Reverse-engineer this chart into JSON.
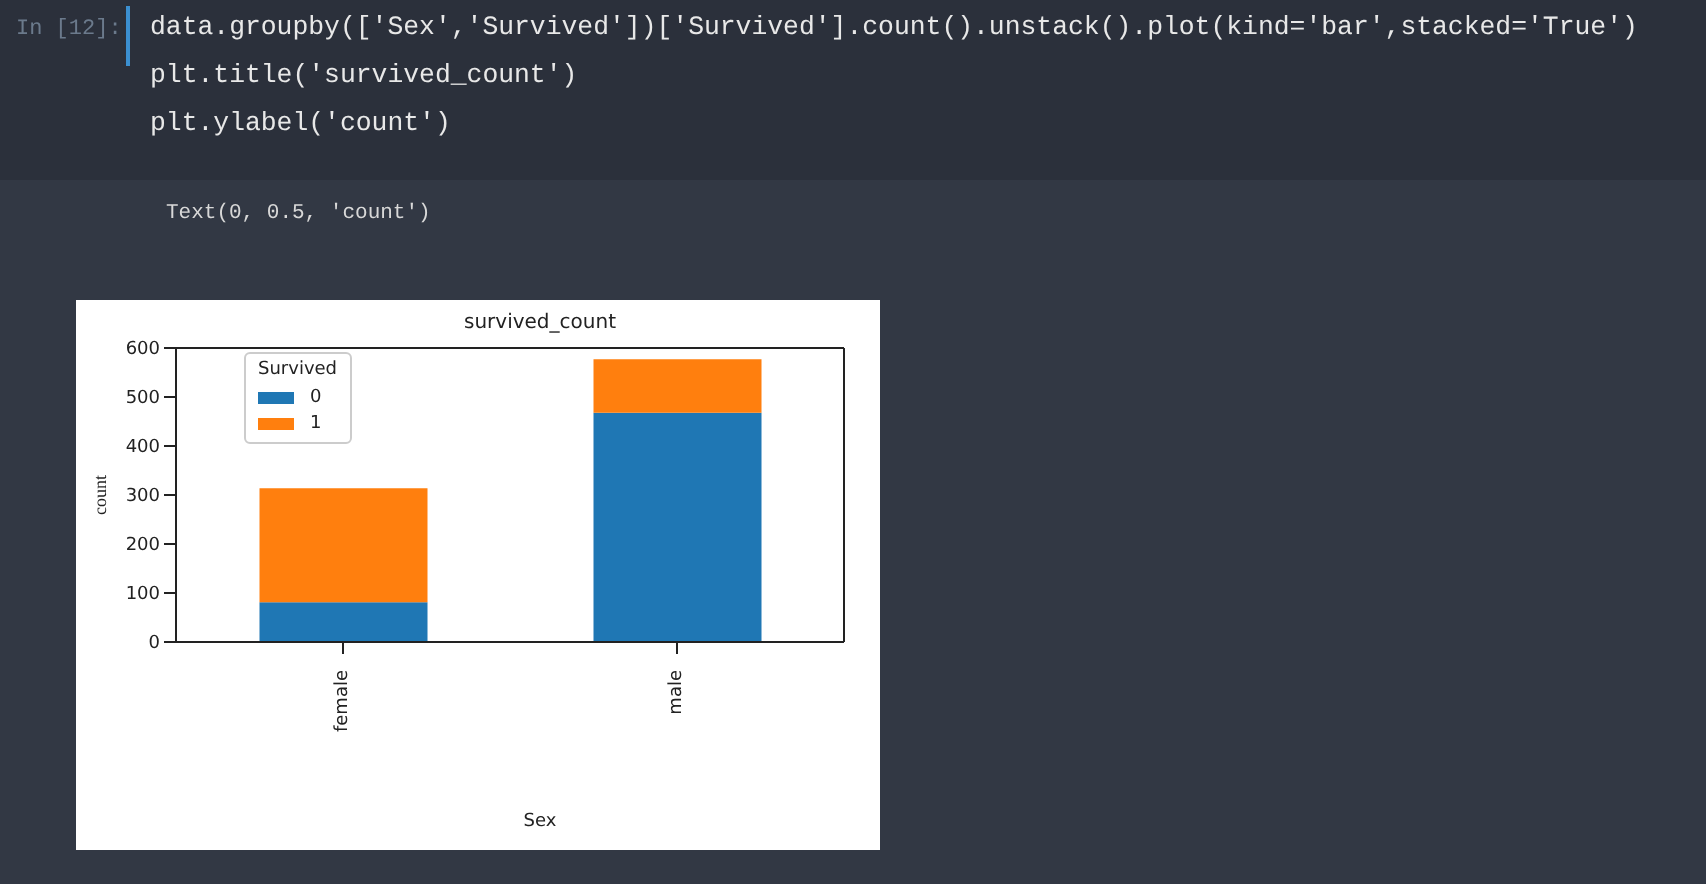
{
  "chart_data": {
    "type": "bar",
    "title": "survived_count",
    "xlabel": "Sex",
    "ylabel": "count",
    "legend_title": "Survived",
    "categories": [
      "female",
      "male"
    ],
    "series": [
      {
        "name": "0",
        "color": "#1f77b4",
        "values": [
          81,
          468
        ]
      },
      {
        "name": "1",
        "color": "#ff7f0e",
        "values": [
          233,
          109
        ]
      }
    ],
    "stacked": true,
    "ylim": [
      0,
      600
    ],
    "yticks": [
      0,
      100,
      200,
      300,
      400,
      500,
      600
    ],
    "legend": "top left",
    "annotations": [
      "In [12]:",
      "data.groupby(['Sex','Survived'])['Survived'].count().unstack().plot(kind='bar',stacked='True')",
      "plt.title('survived_count')",
      "plt.ylabel('count')",
      "Text(0, 0.5, 'count')"
    ]
  }
}
